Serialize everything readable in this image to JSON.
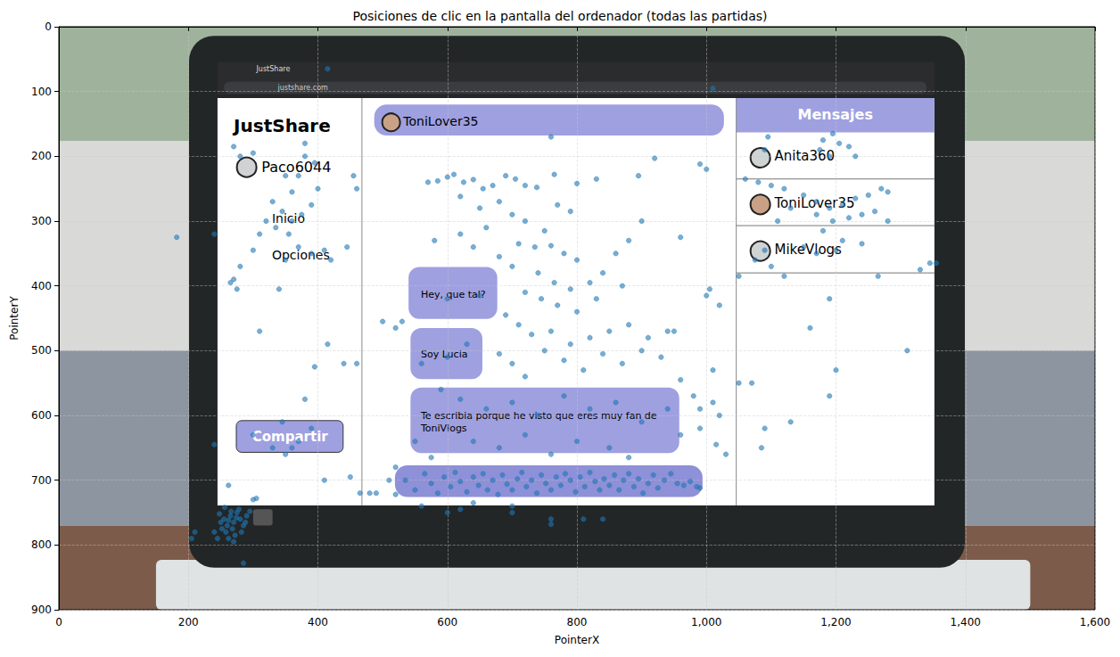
{
  "chart_data": {
    "type": "scatter",
    "title": "Posiciones de clic en la pantalla del ordenador (todas las partidas)",
    "x_label": "PointerX",
    "y_label": "PointerY",
    "xlim": [
      0,
      1600
    ],
    "xticks": [
      0,
      200,
      400,
      600,
      800,
      1000,
      1200,
      1400,
      1600
    ],
    "ylim": [
      900,
      0
    ],
    "yticks": [
      0,
      100,
      200,
      300,
      400,
      500,
      600,
      700,
      800,
      900
    ],
    "grid": true,
    "color": "#1f77b4",
    "marker": "o",
    "x": [
      255,
      260,
      265,
      270,
      275,
      280,
      258,
      262,
      268,
      272,
      250,
      285,
      290,
      278,
      266,
      252,
      282,
      274,
      262,
      288,
      245,
      300,
      305,
      240,
      256,
      295,
      248,
      270,
      262,
      285,
      535,
      550,
      565,
      575,
      585,
      595,
      605,
      612,
      620,
      630,
      640,
      648,
      655,
      662,
      670,
      678,
      685,
      692,
      700,
      708,
      715,
      722,
      730,
      738,
      745,
      752,
      760,
      768,
      775,
      782,
      790,
      798,
      805,
      812,
      820,
      828,
      835,
      842,
      850,
      858,
      865,
      872,
      880,
      888,
      895,
      902,
      910,
      918,
      925,
      935,
      945,
      955,
      965,
      975,
      985,
      990,
      560,
      620,
      700,
      760,
      760,
      510,
      480,
      700,
      640,
      570,
      585,
      600,
      610,
      625,
      640,
      655,
      670,
      690,
      705,
      720,
      738,
      765,
      760,
      800,
      830,
      895,
      920,
      990,
      1000,
      620,
      650,
      680,
      700,
      720,
      750,
      770,
      790,
      660,
      710,
      735,
      760,
      780,
      800,
      680,
      700,
      740,
      765,
      790,
      820,
      840,
      860,
      880,
      900,
      620,
      580,
      640,
      720,
      745,
      770,
      800,
      830,
      870,
      650,
      600,
      690,
      710,
      730,
      760,
      790,
      820,
      850,
      880,
      910,
      940,
      960,
      960,
      680,
      700,
      720,
      750,
      780,
      810,
      840,
      870,
      900,
      930,
      950,
      630,
      600,
      560,
      530,
      500,
      520,
      590,
      620,
      660,
      700,
      740,
      780,
      820,
      860,
      900,
      940,
      980,
      990,
      1010,
      1020,
      1030,
      1015,
      1010,
      1005,
      1020,
      1000,
      990,
      640,
      680,
      720,
      760,
      800,
      850,
      880,
      960,
      550,
      520,
      575,
      490,
      840,
      810,
      600,
      270,
      280,
      300,
      380,
      395,
      380,
      350,
      370,
      360,
      330,
      345,
      360,
      375,
      390,
      400,
      320,
      310,
      335,
      355,
      370,
      390,
      410,
      420,
      350,
      300,
      280,
      270,
      265,
      275,
      340,
      455,
      460,
      445,
      415,
      440,
      395,
      460,
      310,
      380,
      345,
      360,
      370,
      350,
      330,
      300,
      390,
      410,
      450,
      465,
      1095,
      1180,
      1195,
      1205,
      1220,
      1190,
      1175,
      1230,
      1090,
      1060,
      1080,
      1100,
      1120,
      1150,
      1170,
      1190,
      1210,
      1230,
      1250,
      1270,
      1280,
      1170,
      1195,
      1220,
      1240,
      1260,
      1280,
      1130,
      1110,
      1180,
      1150,
      1170,
      1200,
      1240,
      1090,
      1100,
      1120,
      1075,
      1210,
      1265,
      1050,
      1190,
      1160,
      1200,
      1190,
      1130,
      1090,
      1085,
      1070,
      1050,
      1310,
      1345,
      1355,
      1330,
      182,
      240,
      415,
      1010,
      240,
      205,
      210,
      520
    ],
    "values": [
      760,
      770,
      755,
      765,
      750,
      760,
      780,
      790,
      775,
      785,
      765,
      770,
      755,
      745,
      748,
      775,
      780,
      758,
      762,
      765,
      790,
      730,
      728,
      780,
      742,
      748,
      752,
      795,
      708,
      828,
      700,
      715,
      690,
      705,
      720,
      695,
      710,
      688,
      702,
      718,
      695,
      708,
      690,
      715,
      700,
      722,
      692,
      706,
      715,
      698,
      688,
      710,
      700,
      720,
      692,
      705,
      715,
      695,
      708,
      690,
      700,
      718,
      695,
      710,
      688,
      702,
      715,
      698,
      708,
      692,
      715,
      700,
      690,
      710,
      698,
      720,
      705,
      692,
      712,
      700,
      690,
      705,
      708,
      702,
      710,
      712,
      740,
      745,
      750,
      760,
      768,
      700,
      720,
      740,
      735,
      240,
      238,
      232,
      228,
      240,
      236,
      250,
      245,
      230,
      235,
      245,
      248,
      228,
      170,
      242,
      235,
      230,
      203,
      212,
      220,
      262,
      280,
      270,
      290,
      300,
      315,
      275,
      285,
      310,
      335,
      340,
      338,
      350,
      360,
      355,
      370,
      380,
      395,
      405,
      395,
      380,
      350,
      330,
      300,
      320,
      330,
      340,
      410,
      420,
      430,
      440,
      420,
      400,
      415,
      420,
      445,
      460,
      475,
      470,
      490,
      480,
      470,
      460,
      480,
      470,
      325,
      545,
      505,
      520,
      540,
      500,
      515,
      530,
      505,
      520,
      500,
      510,
      470,
      490,
      510,
      520,
      455,
      455,
      465,
      560,
      575,
      590,
      580,
      600,
      570,
      590,
      580,
      610,
      590,
      570,
      620,
      580,
      600,
      660,
      645,
      530,
      405,
      430,
      415,
      590,
      640,
      650,
      630,
      660,
      640,
      650,
      665,
      630,
      640,
      680,
      665,
      720,
      760,
      760,
      750,
      185,
      200,
      195,
      200,
      210,
      180,
      230,
      230,
      255,
      270,
      285,
      300,
      290,
      275,
      250,
      300,
      320,
      310,
      320,
      340,
      350,
      345,
      360,
      360,
      345,
      370,
      390,
      395,
      405,
      405,
      230,
      250,
      340,
      490,
      520,
      525,
      520,
      470,
      575,
      610,
      650,
      640,
      660,
      650,
      630,
      620,
      700,
      695,
      720,
      170,
      175,
      165,
      180,
      185,
      200,
      190,
      200,
      190,
      235,
      240,
      245,
      250,
      260,
      270,
      280,
      275,
      265,
      260,
      250,
      255,
      290,
      300,
      295,
      290,
      285,
      300,
      280,
      300,
      315,
      340,
      350,
      345,
      335,
      345,
      370,
      385,
      360,
      330,
      385,
      385,
      420,
      465,
      530,
      570,
      610,
      620,
      650,
      550,
      550,
      500,
      365,
      365,
      375,
      325,
      320,
      65,
      95,
      645,
      790,
      780,
      722
    ],
    "background": {
      "tab": "JustShare",
      "url": "justshare.com",
      "brand": "JustShare",
      "user": "Paco6044",
      "menu": [
        "Inicio",
        "Opciones"
      ],
      "button": "Compartir",
      "chat_header": "ToniLover35",
      "messages_title": "Mensajes",
      "contacts": [
        "Anita360",
        "ToniLover35",
        "MikeVlogs"
      ],
      "chat": [
        "Hey, que tal?",
        "Soy Lucia",
        "Te escribia porque he visto que eres muy fan de ToniVlogs"
      ]
    }
  }
}
